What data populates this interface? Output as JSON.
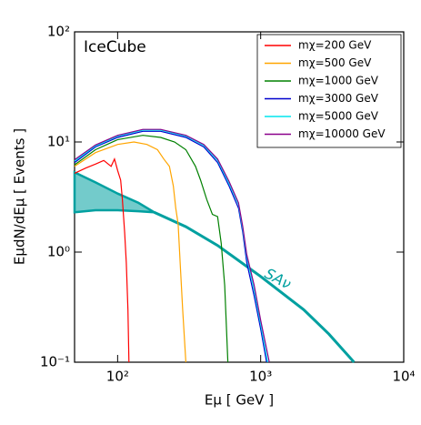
{
  "chart_data": {
    "type": "line",
    "annotation": "IceCube",
    "x_label": "Eμ [ GeV ]",
    "y_label": "EμdN/dEμ [ Events ]",
    "xscale": "log",
    "yscale": "log",
    "xlim": [
      50,
      10000
    ],
    "ylim": [
      0.1,
      100
    ],
    "xticks": [
      {
        "value": 100,
        "label": "10²"
      },
      {
        "value": 1000,
        "label": "10³"
      },
      {
        "value": 10000,
        "label": "10⁴"
      }
    ],
    "yticks": [
      {
        "value": 0.1,
        "label": "10⁻¹"
      },
      {
        "value": 1,
        "label": "10⁰"
      },
      {
        "value": 10,
        "label": "10¹"
      },
      {
        "value": 100,
        "label": "10²"
      }
    ],
    "legend": "upper right",
    "series": [
      {
        "name": "mχ=200 GeV",
        "color": "#ff0000",
        "x": [
          50,
          60,
          70,
          80,
          90,
          95,
          100,
          105,
          108,
          112,
          115,
          118,
          120
        ],
        "values": [
          5.2,
          5.8,
          6.3,
          6.8,
          6.0,
          7.0,
          5.5,
          4.5,
          3.0,
          1.5,
          0.8,
          0.3,
          0.1
        ]
      },
      {
        "name": "mχ=500 GeV",
        "color": "#ffa500",
        "x": [
          50,
          70,
          100,
          130,
          160,
          190,
          210,
          230,
          245,
          255,
          265,
          275,
          285,
          300
        ],
        "values": [
          6.0,
          8.0,
          9.5,
          10,
          9.5,
          8.5,
          7,
          6,
          4,
          2.5,
          1.8,
          0.7,
          0.3,
          0.1
        ]
      },
      {
        "name": "mχ=1000 GeV",
        "color": "#008000",
        "x": [
          50,
          70,
          100,
          150,
          200,
          250,
          300,
          350,
          380,
          420,
          460,
          500,
          530,
          560,
          590
        ],
        "values": [
          6.2,
          8.5,
          10.5,
          11.5,
          11,
          10,
          8.5,
          6,
          4.5,
          3,
          2.2,
          2.1,
          1.2,
          0.5,
          0.1
        ]
      },
      {
        "name": "mχ=3000 GeV",
        "color": "#0000cd",
        "x": [
          50,
          70,
          100,
          150,
          200,
          300,
          400,
          500,
          600,
          700,
          750,
          800,
          900,
          1000,
          1100
        ],
        "values": [
          6.5,
          9,
          11,
          12.5,
          12.5,
          11,
          9,
          6.5,
          4,
          2.5,
          1.5,
          0.8,
          0.4,
          0.2,
          0.1
        ]
      },
      {
        "name": "mχ=5000 GeV",
        "color": "#00e5ee",
        "x": [
          50,
          70,
          100,
          150,
          200,
          300,
          400,
          500,
          600,
          700,
          750,
          800,
          900,
          1000,
          1120
        ],
        "values": [
          6.7,
          9.2,
          11.3,
          12.8,
          12.8,
          11.3,
          9.3,
          6.8,
          4.2,
          2.7,
          1.6,
          0.9,
          0.45,
          0.22,
          0.1
        ]
      },
      {
        "name": "mχ=10000 GeV",
        "color": "#8b008b",
        "x": [
          50,
          70,
          100,
          150,
          200,
          300,
          400,
          500,
          600,
          700,
          750,
          800,
          900,
          1000,
          1150
        ],
        "values": [
          6.9,
          9.4,
          11.5,
          13,
          13,
          11.5,
          9.5,
          7,
          4.4,
          2.8,
          1.7,
          0.95,
          0.5,
          0.24,
          0.1
        ]
      }
    ],
    "reference": {
      "label": "SAν",
      "color": "#00a0a0",
      "band_x": [
        50,
        70,
        100,
        140,
        180
      ],
      "band_upper": [
        5.3,
        4.3,
        3.4,
        2.8,
        2.3
      ],
      "band_lower": [
        2.3,
        2.4,
        2.4,
        2.35,
        2.3
      ],
      "x": [
        180,
        300,
        500,
        1000,
        2000,
        3000,
        4500
      ],
      "values": [
        2.3,
        1.7,
        1.15,
        0.6,
        0.3,
        0.18,
        0.1
      ]
    }
  }
}
